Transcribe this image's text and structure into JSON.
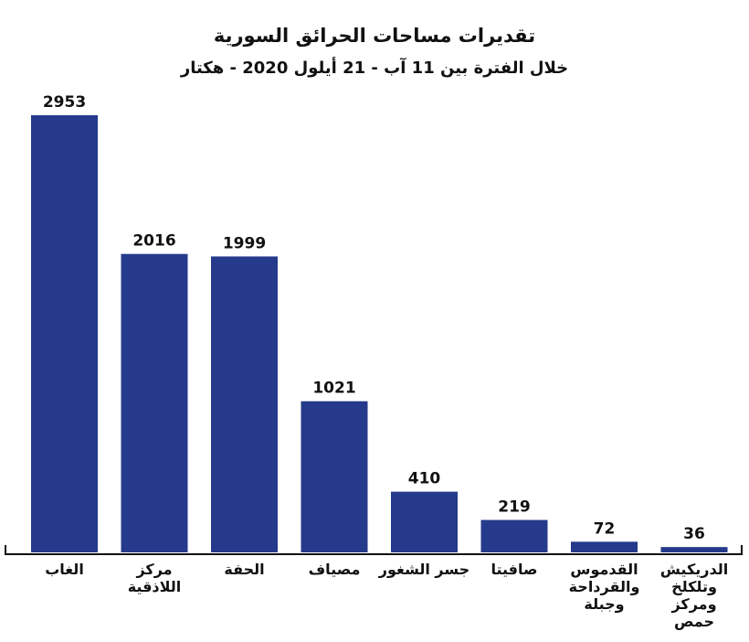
{
  "chart_data": {
    "type": "bar",
    "title": "تقديرات مساحات الحرائق السورية",
    "subtitle": "خلال الفترة بين 11 آب - 21 أيلول 2020 - هكتار",
    "categories": [
      [
        "الغاب"
      ],
      [
        "مركز",
        "اللاذقية"
      ],
      [
        "الحفة"
      ],
      [
        "مصياف"
      ],
      [
        "جسر الشغور"
      ],
      [
        "صافيتا"
      ],
      [
        "القدموس",
        "والقرداحة",
        "وجبلة"
      ],
      [
        "الدريكيش",
        "وتلكلخ",
        "ومركز",
        "حمص"
      ]
    ],
    "values": [
      2953,
      2016,
      1999,
      1021,
      410,
      219,
      72,
      36
    ],
    "ylim": [
      0,
      2953
    ],
    "grid": false,
    "bar_color": "#253a8b"
  }
}
